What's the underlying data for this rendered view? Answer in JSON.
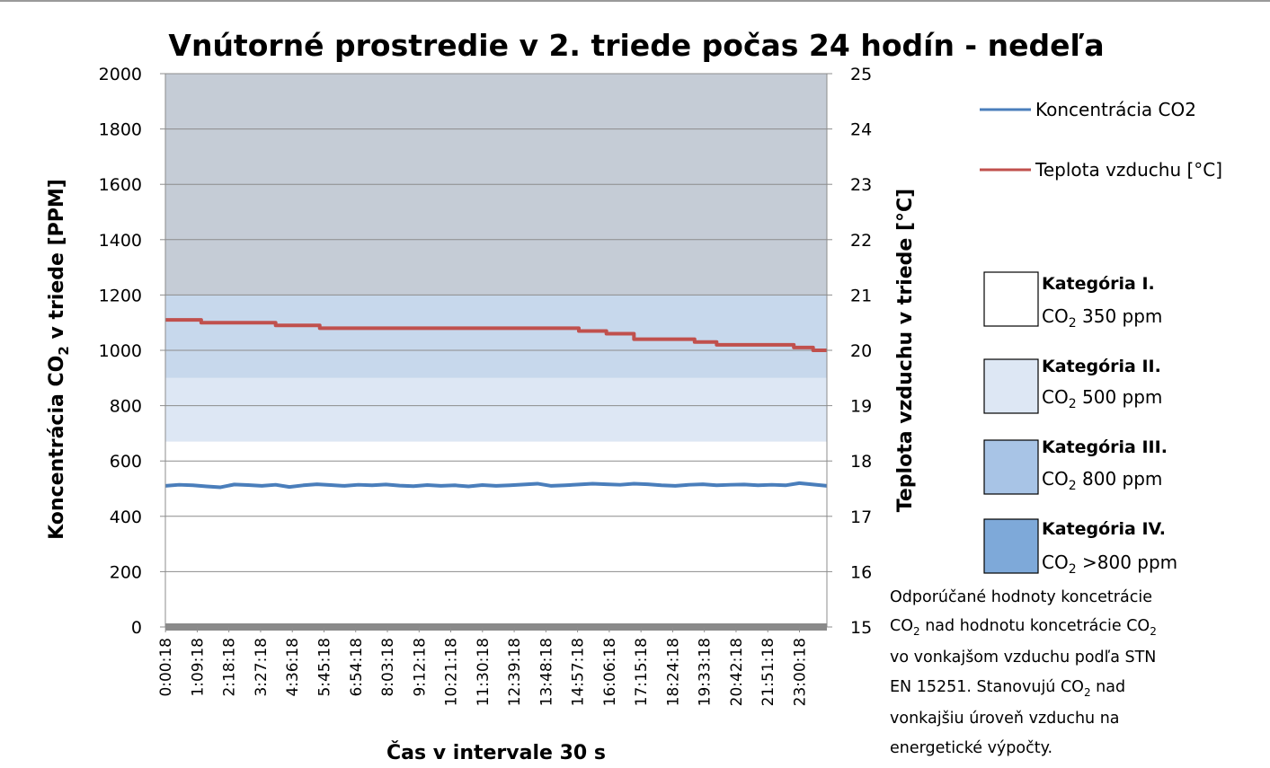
{
  "chart_data": {
    "type": "line",
    "title": "Vnútorné prostredie v 2. triede počas 24 hodín - nedeľa",
    "xlabel": "Čas v intervale 30 s",
    "ylabel_left_pre": "Koncentrácia CO",
    "ylabel_left_sub": "2",
    "ylabel_left_post": " v triede [PPM]",
    "ylabel_right": "Teplota vzduchu v triede [°C]",
    "y_left_range": [
      0,
      2000
    ],
    "y_left_ticks": [
      "0",
      "200",
      "400",
      "600",
      "800",
      "1000",
      "1200",
      "1400",
      "1600",
      "1800",
      "2000"
    ],
    "y_right_range": [
      15,
      25
    ],
    "y_right_ticks": [
      "15",
      "16",
      "17",
      "18",
      "19",
      "20",
      "21",
      "22",
      "23",
      "24",
      "25"
    ],
    "x_ticks": [
      "0:00:18",
      "1:09:18",
      "2:18:18",
      "3:27:18",
      "4:36:18",
      "5:45:18",
      "6:54:18",
      "8:03:18",
      "9:12:18",
      "10:21:18",
      "11:30:18",
      "12:39:18",
      "13:48:18",
      "14:57:18",
      "16:06:18",
      "17:15:18",
      "18:24:18",
      "19:33:18",
      "20:42:18",
      "21:51:18",
      "23:00:18"
    ],
    "x_range_hours": [
      0.005,
      23.99
    ],
    "grid": true,
    "background_bands": [
      {
        "from": 0,
        "to": 670,
        "color": "#ffffff"
      },
      {
        "from": 670,
        "to": 900,
        "color": "#dde7f4"
      },
      {
        "from": 900,
        "to": 1200,
        "color": "#c7d8ec"
      },
      {
        "from": 1200,
        "to": 2000,
        "color": "#c5ccd6"
      }
    ],
    "series": [
      {
        "name": "Koncentrácia CO2",
        "axis": "left",
        "color": "#4a7ebb",
        "x_hours": [
          0,
          0.5,
          1,
          1.5,
          2,
          2.5,
          3,
          3.5,
          4,
          4.5,
          5,
          5.5,
          6,
          6.5,
          7,
          7.5,
          8,
          8.5,
          9,
          9.5,
          10,
          10.5,
          11,
          11.5,
          12,
          12.5,
          13,
          13.5,
          14,
          14.5,
          15,
          15.5,
          16,
          16.5,
          17,
          17.5,
          18,
          18.5,
          19,
          19.5,
          20,
          20.5,
          21,
          21.5,
          22,
          22.5,
          23,
          23.5,
          24
        ],
        "values": [
          510,
          514,
          512,
          508,
          505,
          515,
          513,
          510,
          514,
          506,
          512,
          516,
          513,
          510,
          514,
          512,
          515,
          511,
          509,
          513,
          510,
          512,
          508,
          513,
          510,
          512,
          515,
          518,
          510,
          512,
          515,
          518,
          516,
          514,
          518,
          516,
          512,
          510,
          514,
          516,
          512,
          514,
          515,
          512,
          514,
          512,
          520,
          515,
          510
        ]
      },
      {
        "name": "Teplota vzduchu [°C]",
        "axis": "right",
        "color": "#c0504d",
        "x_hours": [
          0,
          1,
          1.3,
          2,
          3,
          4,
          5,
          5.6,
          6.5,
          8,
          9,
          10,
          11,
          12,
          12.5,
          13,
          14,
          14.7,
          15,
          16,
          16.8,
          17,
          18,
          19.2,
          20,
          21,
          22,
          22.8,
          23.5,
          24
        ],
        "values": [
          20.55,
          20.55,
          20.5,
          20.5,
          20.5,
          20.45,
          20.45,
          20.4,
          20.4,
          20.4,
          20.4,
          20.4,
          20.4,
          20.4,
          20.4,
          20.4,
          20.4,
          20.4,
          20.35,
          20.3,
          20.3,
          20.2,
          20.2,
          20.15,
          20.1,
          20.1,
          20.1,
          20.05,
          20.0,
          20.0
        ]
      }
    ]
  },
  "legend": {
    "series": [
      {
        "label": "Koncentrácia CO2",
        "color": "#4a7ebb"
      },
      {
        "label": "Teplota vzduchu [°C]",
        "color": "#c0504d"
      }
    ],
    "categories": [
      {
        "title": "Kategória I.",
        "co_pre": "CO",
        "co_sub": "2",
        "co_post": " 350 ppm",
        "color": "#ffffff"
      },
      {
        "title": "Kategória II.",
        "co_pre": "CO",
        "co_sub": "2",
        "co_post": " 500 ppm",
        "color": "#dde7f4"
      },
      {
        "title": "Kategória III.",
        "co_pre": "CO",
        "co_sub": "2",
        "co_post": " 800 ppm",
        "color": "#a8c4e6"
      },
      {
        "title": "Kategória IV.",
        "co_pre": "CO",
        "co_sub": "2",
        "co_post": " >800 ppm",
        "color": "#7ea9d9"
      }
    ]
  },
  "note": {
    "line1": "Odporúčané hodnoty koncetrácie",
    "line2_pre": "CO",
    "line2_sub1": "2",
    "line2_mid": " nad hodnotu koncetrácie CO",
    "line2_sub2": "2",
    "line3": "vo vonkajšom vzduchu podľa STN",
    "line4_pre": "EN 15251. Stanovujú CO",
    "line4_sub": "2",
    "line4_post": " nad",
    "line5": "vonkajšiu úroveň vzduchu na",
    "line6": "energetické výpočty."
  }
}
